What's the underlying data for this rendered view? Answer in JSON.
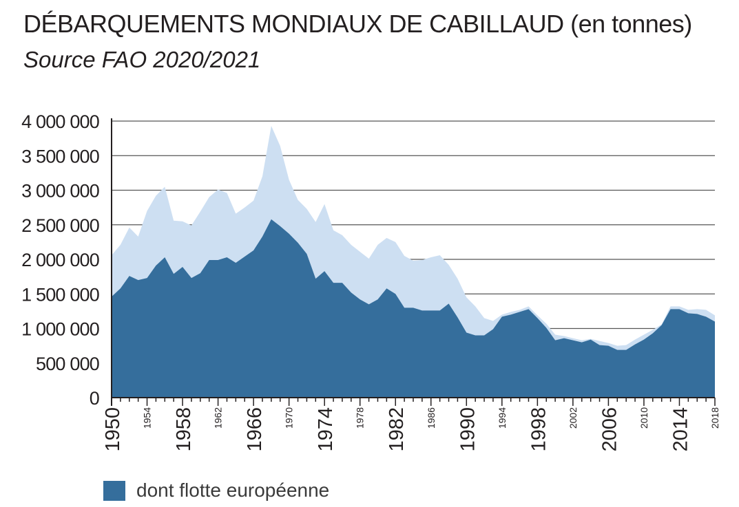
{
  "header": {
    "title": "DÉBARQUEMENTS MONDIAUX DE CABILLAUD (en tonnes)",
    "subtitle": "Source FAO 2020/2021"
  },
  "colors": {
    "total": "#cddff2",
    "europe": "#356e9c",
    "grid": "#555555",
    "text": "#231f20"
  },
  "legend": {
    "items": [
      {
        "label": "dont flotte européenne",
        "color": "#356e9c"
      }
    ]
  },
  "chart_data": {
    "type": "area",
    "title": "DÉBARQUEMENTS MONDIAUX DE CABILLAUD (en tonnes)",
    "subtitle": "Source FAO 2020/2021",
    "xlim": [
      1950,
      2018
    ],
    "ylim": [
      0,
      4000000
    ],
    "y_ticks": [
      {
        "value": 0,
        "label": "0"
      },
      {
        "value": 500000,
        "label": "500 000"
      },
      {
        "value": 1000000,
        "label": "1 000 000"
      },
      {
        "value": 1500000,
        "label": "1 500 000"
      },
      {
        "value": 2000000,
        "label": "2 000 000"
      },
      {
        "value": 2500000,
        "label": "2 500 000"
      },
      {
        "value": 3000000,
        "label": "3 000 000"
      },
      {
        "value": 3500000,
        "label": "3 500 000"
      },
      {
        "value": 4000000,
        "label": "4 000 000"
      }
    ],
    "x_ticks": [
      {
        "value": 1950,
        "label": "1950",
        "size": "large"
      },
      {
        "value": 1954,
        "label": "1954",
        "size": "small"
      },
      {
        "value": 1958,
        "label": "1958",
        "size": "large"
      },
      {
        "value": 1962,
        "label": "1962",
        "size": "small"
      },
      {
        "value": 1966,
        "label": "1966",
        "size": "large"
      },
      {
        "value": 1970,
        "label": "1970",
        "size": "small"
      },
      {
        "value": 1974,
        "label": "1974",
        "size": "large"
      },
      {
        "value": 1978,
        "label": "1978",
        "size": "small"
      },
      {
        "value": 1982,
        "label": "1982",
        "size": "large"
      },
      {
        "value": 1986,
        "label": "1986",
        "size": "small"
      },
      {
        "value": 1990,
        "label": "1990",
        "size": "large"
      },
      {
        "value": 1994,
        "label": "1994",
        "size": "small"
      },
      {
        "value": 1998,
        "label": "1998",
        "size": "large"
      },
      {
        "value": 2002,
        "label": "2002",
        "size": "small"
      },
      {
        "value": 2006,
        "label": "2006",
        "size": "large"
      },
      {
        "value": 2010,
        "label": "2010",
        "size": "small"
      },
      {
        "value": 2014,
        "label": "2014",
        "size": "large"
      },
      {
        "value": 2018,
        "label": "2018",
        "size": "small"
      }
    ],
    "grid": true,
    "legend_position": "bottom-left",
    "x": [
      1950,
      1951,
      1952,
      1953,
      1954,
      1955,
      1956,
      1957,
      1958,
      1959,
      1960,
      1961,
      1962,
      1963,
      1964,
      1965,
      1966,
      1967,
      1968,
      1969,
      1970,
      1971,
      1972,
      1973,
      1974,
      1975,
      1976,
      1977,
      1978,
      1979,
      1980,
      1981,
      1982,
      1983,
      1984,
      1985,
      1986,
      1987,
      1988,
      1989,
      1990,
      1991,
      1992,
      1993,
      1994,
      1995,
      1996,
      1997,
      1998,
      1999,
      2000,
      2001,
      2002,
      2003,
      2004,
      2005,
      2006,
      2007,
      2008,
      2009,
      2010,
      2011,
      2012,
      2013,
      2014,
      2015,
      2016,
      2017,
      2018
    ],
    "series": [
      {
        "name": "",
        "values": [
          2060000,
          2210000,
          2460000,
          2330000,
          2700000,
          2920000,
          3050000,
          2560000,
          2550000,
          2490000,
          2690000,
          2900000,
          3010000,
          2960000,
          2660000,
          2750000,
          2850000,
          3200000,
          3930000,
          3640000,
          3150000,
          2860000,
          2730000,
          2540000,
          2800000,
          2420000,
          2350000,
          2210000,
          2110000,
          2010000,
          2210000,
          2310000,
          2250000,
          2050000,
          1980000,
          1990000,
          2030000,
          2060000,
          1920000,
          1720000,
          1450000,
          1320000,
          1150000,
          1110000,
          1200000,
          1240000,
          1270000,
          1320000,
          1190000,
          1070000,
          910000,
          890000,
          860000,
          830000,
          850000,
          820000,
          790000,
          750000,
          760000,
          840000,
          910000,
          980000,
          1060000,
          1320000,
          1320000,
          1270000,
          1280000,
          1270000,
          1190000
        ]
      },
      {
        "name": "dont flotte européenne",
        "values": [
          1460000,
          1580000,
          1760000,
          1700000,
          1730000,
          1910000,
          2030000,
          1790000,
          1890000,
          1730000,
          1800000,
          1990000,
          1990000,
          2030000,
          1950000,
          2040000,
          2130000,
          2330000,
          2580000,
          2480000,
          2370000,
          2240000,
          2080000,
          1720000,
          1830000,
          1660000,
          1660000,
          1520000,
          1420000,
          1350000,
          1420000,
          1580000,
          1500000,
          1300000,
          1300000,
          1260000,
          1260000,
          1260000,
          1360000,
          1160000,
          940000,
          900000,
          900000,
          990000,
          1170000,
          1200000,
          1240000,
          1280000,
          1150000,
          1010000,
          830000,
          860000,
          830000,
          800000,
          840000,
          760000,
          750000,
          690000,
          690000,
          770000,
          840000,
          930000,
          1050000,
          1280000,
          1280000,
          1220000,
          1210000,
          1170000,
          1100000
        ]
      }
    ]
  }
}
